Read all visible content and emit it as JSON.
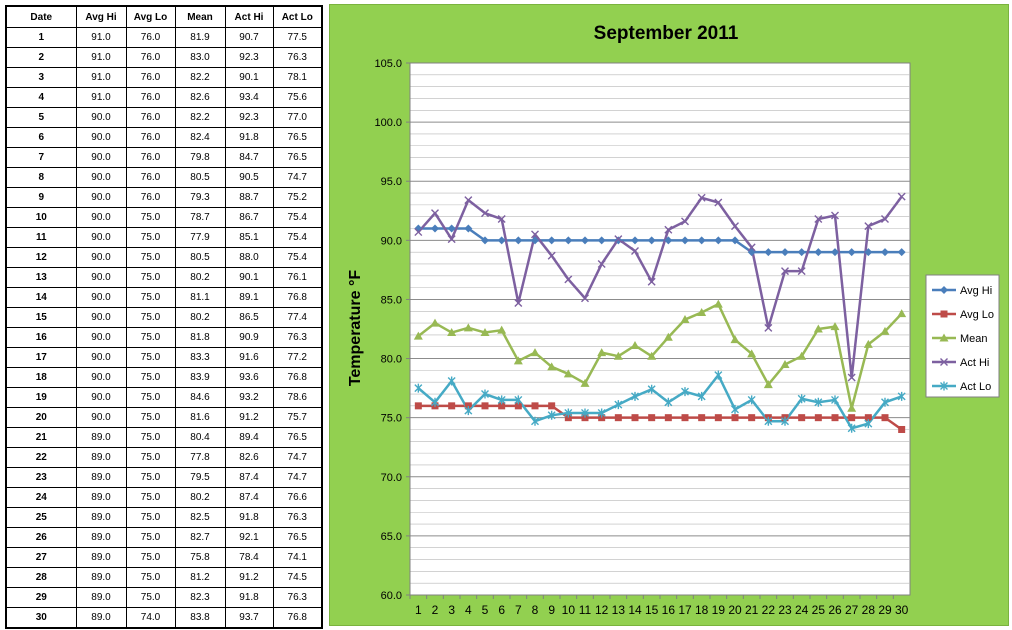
{
  "table": {
    "headers": [
      "Date",
      "Avg Hi",
      "Avg Lo",
      "Mean",
      "Act Hi",
      "Act Lo"
    ],
    "rows": [
      [
        "1",
        "91.0",
        "76.0",
        "81.9",
        "90.7",
        "77.5"
      ],
      [
        "2",
        "91.0",
        "76.0",
        "83.0",
        "92.3",
        "76.3"
      ],
      [
        "3",
        "91.0",
        "76.0",
        "82.2",
        "90.1",
        "78.1"
      ],
      [
        "4",
        "91.0",
        "76.0",
        "82.6",
        "93.4",
        "75.6"
      ],
      [
        "5",
        "90.0",
        "76.0",
        "82.2",
        "92.3",
        "77.0"
      ],
      [
        "6",
        "90.0",
        "76.0",
        "82.4",
        "91.8",
        "76.5"
      ],
      [
        "7",
        "90.0",
        "76.0",
        "79.8",
        "84.7",
        "76.5"
      ],
      [
        "8",
        "90.0",
        "76.0",
        "80.5",
        "90.5",
        "74.7"
      ],
      [
        "9",
        "90.0",
        "76.0",
        "79.3",
        "88.7",
        "75.2"
      ],
      [
        "10",
        "90.0",
        "75.0",
        "78.7",
        "86.7",
        "75.4"
      ],
      [
        "11",
        "90.0",
        "75.0",
        "77.9",
        "85.1",
        "75.4"
      ],
      [
        "12",
        "90.0",
        "75.0",
        "80.5",
        "88.0",
        "75.4"
      ],
      [
        "13",
        "90.0",
        "75.0",
        "80.2",
        "90.1",
        "76.1"
      ],
      [
        "14",
        "90.0",
        "75.0",
        "81.1",
        "89.1",
        "76.8"
      ],
      [
        "15",
        "90.0",
        "75.0",
        "80.2",
        "86.5",
        "77.4"
      ],
      [
        "16",
        "90.0",
        "75.0",
        "81.8",
        "90.9",
        "76.3"
      ],
      [
        "17",
        "90.0",
        "75.0",
        "83.3",
        "91.6",
        "77.2"
      ],
      [
        "18",
        "90.0",
        "75.0",
        "83.9",
        "93.6",
        "76.8"
      ],
      [
        "19",
        "90.0",
        "75.0",
        "84.6",
        "93.2",
        "78.6"
      ],
      [
        "20",
        "90.0",
        "75.0",
        "81.6",
        "91.2",
        "75.7"
      ],
      [
        "21",
        "89.0",
        "75.0",
        "80.4",
        "89.4",
        "76.5"
      ],
      [
        "22",
        "89.0",
        "75.0",
        "77.8",
        "82.6",
        "74.7"
      ],
      [
        "23",
        "89.0",
        "75.0",
        "79.5",
        "87.4",
        "74.7"
      ],
      [
        "24",
        "89.0",
        "75.0",
        "80.2",
        "87.4",
        "76.6"
      ],
      [
        "25",
        "89.0",
        "75.0",
        "82.5",
        "91.8",
        "76.3"
      ],
      [
        "26",
        "89.0",
        "75.0",
        "82.7",
        "92.1",
        "76.5"
      ],
      [
        "27",
        "89.0",
        "75.0",
        "75.8",
        "78.4",
        "74.1"
      ],
      [
        "28",
        "89.0",
        "75.0",
        "81.2",
        "91.2",
        "74.5"
      ],
      [
        "29",
        "89.0",
        "75.0",
        "82.3",
        "91.8",
        "76.3"
      ],
      [
        "30",
        "89.0",
        "74.0",
        "83.8",
        "93.7",
        "76.8"
      ]
    ]
  },
  "chart_data": {
    "type": "line",
    "title": "September 2011",
    "xlabel": "",
    "ylabel": "Temperature °F",
    "ylim": [
      60,
      105
    ],
    "yticks": [
      "60.0",
      "65.0",
      "70.0",
      "75.0",
      "80.0",
      "85.0",
      "90.0",
      "95.0",
      "100.0",
      "105.0"
    ],
    "y_major_step": 5,
    "y_minor_step": 1,
    "grid": true,
    "legend": "right",
    "x": [
      1,
      2,
      3,
      4,
      5,
      6,
      7,
      8,
      9,
      10,
      11,
      12,
      13,
      14,
      15,
      16,
      17,
      18,
      19,
      20,
      21,
      22,
      23,
      24,
      25,
      26,
      27,
      28,
      29,
      30
    ],
    "series": [
      {
        "name": "Avg Hi",
        "color": "#4a7ebb",
        "marker": "diamond",
        "values": [
          91,
          91,
          91,
          91,
          90,
          90,
          90,
          90,
          90,
          90,
          90,
          90,
          90,
          90,
          90,
          90,
          90,
          90,
          90,
          90,
          89,
          89,
          89,
          89,
          89,
          89,
          89,
          89,
          89,
          89
        ]
      },
      {
        "name": "Avg Lo",
        "color": "#be4b48",
        "marker": "square",
        "values": [
          76,
          76,
          76,
          76,
          76,
          76,
          76,
          76,
          76,
          75,
          75,
          75,
          75,
          75,
          75,
          75,
          75,
          75,
          75,
          75,
          75,
          75,
          75,
          75,
          75,
          75,
          75,
          75,
          75,
          74
        ]
      },
      {
        "name": "Mean",
        "color": "#98b954",
        "marker": "triangle",
        "values": [
          81.9,
          83.0,
          82.2,
          82.6,
          82.2,
          82.4,
          79.8,
          80.5,
          79.3,
          78.7,
          77.9,
          80.5,
          80.2,
          81.1,
          80.2,
          81.8,
          83.3,
          83.9,
          84.6,
          81.6,
          80.4,
          77.8,
          79.5,
          80.2,
          82.5,
          82.7,
          75.8,
          81.2,
          82.3,
          83.8
        ]
      },
      {
        "name": "Act Hi",
        "color": "#7d60a0",
        "marker": "x",
        "values": [
          90.7,
          92.3,
          90.1,
          93.4,
          92.3,
          91.8,
          84.7,
          90.5,
          88.7,
          86.7,
          85.1,
          88.0,
          90.1,
          89.1,
          86.5,
          90.9,
          91.6,
          93.6,
          93.2,
          91.2,
          89.4,
          82.6,
          87.4,
          87.4,
          91.8,
          92.1,
          78.4,
          91.2,
          91.8,
          93.7
        ]
      },
      {
        "name": "Act Lo",
        "color": "#46aac5",
        "marker": "star",
        "values": [
          77.5,
          76.3,
          78.1,
          75.6,
          77.0,
          76.5,
          76.5,
          74.7,
          75.2,
          75.4,
          75.4,
          75.4,
          76.1,
          76.8,
          77.4,
          76.3,
          77.2,
          76.8,
          78.6,
          75.7,
          76.5,
          74.7,
          74.7,
          76.6,
          76.3,
          76.5,
          74.1,
          74.5,
          76.3,
          76.8
        ]
      }
    ]
  }
}
